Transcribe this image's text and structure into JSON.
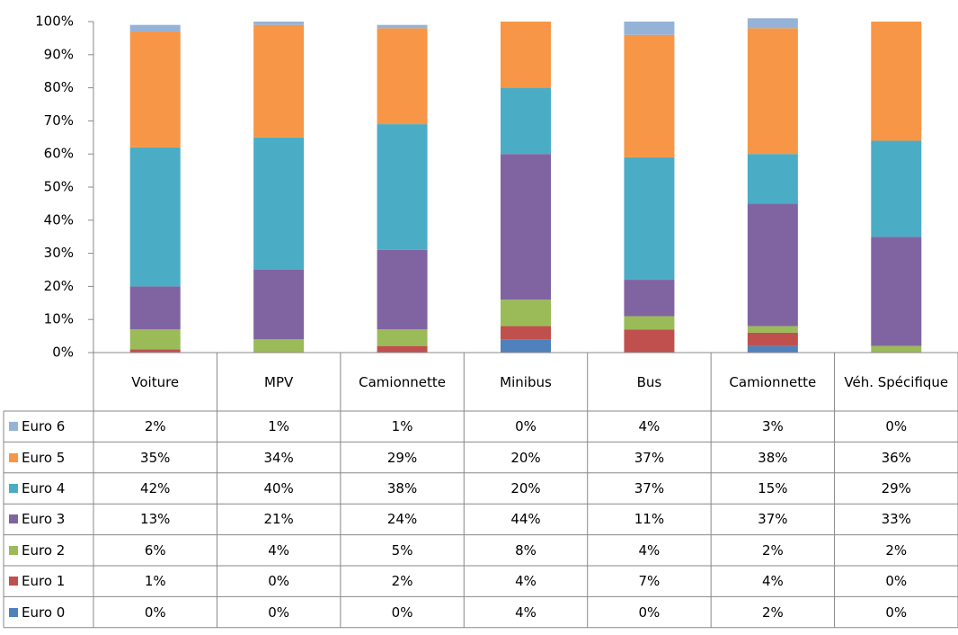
{
  "chart_data": {
    "type": "stacked_bar",
    "categories": [
      "Voiture",
      "MPV",
      "Camionnette",
      "Minibus",
      "Bus",
      "Camionnette",
      "Véh. Spécifique"
    ],
    "series": [
      {
        "name": "Euro 0",
        "color": "#4f81bd",
        "values": [
          0,
          0,
          0,
          4,
          0,
          2,
          0
        ],
        "value_labels": [
          "0%",
          "0%",
          "0%",
          "4%",
          "0%",
          "2%",
          "0%"
        ]
      },
      {
        "name": "Euro 1",
        "color": "#c0504d",
        "values": [
          1,
          0,
          2,
          4,
          7,
          4,
          0
        ],
        "value_labels": [
          "1%",
          "0%",
          "2%",
          "4%",
          "7%",
          "4%",
          "0%"
        ]
      },
      {
        "name": "Euro 2",
        "color": "#9bbb59",
        "values": [
          6,
          4,
          5,
          8,
          4,
          2,
          2
        ],
        "value_labels": [
          "6%",
          "4%",
          "5%",
          "8%",
          "4%",
          "2%",
          "2%"
        ]
      },
      {
        "name": "Euro 3",
        "color": "#8064a2",
        "values": [
          13,
          21,
          24,
          44,
          11,
          37,
          33
        ],
        "value_labels": [
          "13%",
          "21%",
          "24%",
          "44%",
          "11%",
          "37%",
          "33%"
        ]
      },
      {
        "name": "Euro 4",
        "color": "#4bacc6",
        "values": [
          42,
          40,
          38,
          20,
          37,
          15,
          29
        ],
        "value_labels": [
          "42%",
          "40%",
          "38%",
          "20%",
          "37%",
          "15%",
          "29%"
        ]
      },
      {
        "name": "Euro 5",
        "color": "#f79646",
        "values": [
          35,
          34,
          29,
          20,
          37,
          38,
          36
        ],
        "value_labels": [
          "35%",
          "34%",
          "29%",
          "20%",
          "37%",
          "38%",
          "36%"
        ]
      },
      {
        "name": "Euro 6",
        "color": "#95b3d7",
        "values": [
          2,
          1,
          1,
          0,
          4,
          3,
          0
        ],
        "value_labels": [
          "2%",
          "1%",
          "1%",
          "0%",
          "4%",
          "3%",
          "0%"
        ]
      }
    ],
    "ylim": [
      0,
      100
    ],
    "yticks": [
      {
        "value": 0,
        "label": "0%"
      },
      {
        "value": 10,
        "label": "10%"
      },
      {
        "value": 20,
        "label": "20%"
      },
      {
        "value": 30,
        "label": "30%"
      },
      {
        "value": 40,
        "label": "40%"
      },
      {
        "value": 50,
        "label": "50%"
      },
      {
        "value": 60,
        "label": "60%"
      },
      {
        "value": 70,
        "label": "70%"
      },
      {
        "value": 80,
        "label": "80%"
      },
      {
        "value": 90,
        "label": "90%"
      },
      {
        "value": 100,
        "label": "100%"
      }
    ],
    "grid": false
  }
}
